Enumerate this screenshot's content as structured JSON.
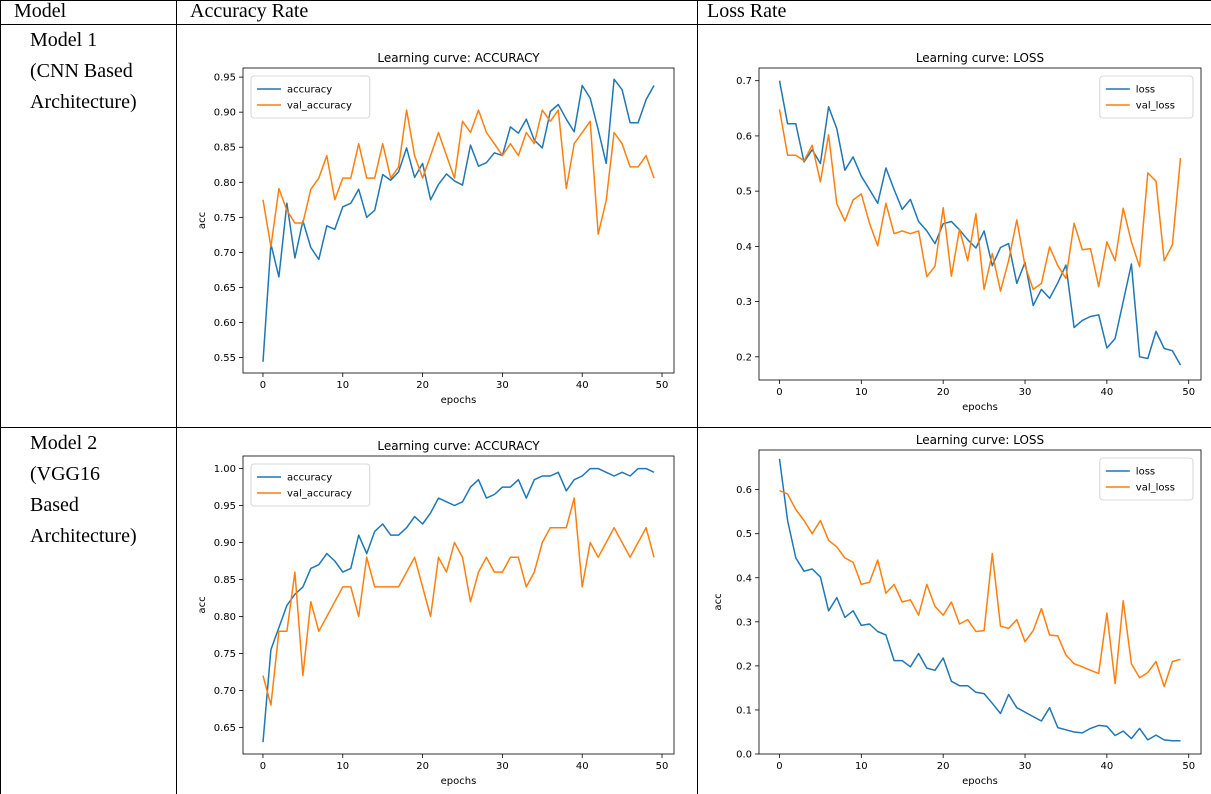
{
  "table": {
    "headers": [
      "Model",
      "Accuracy Rate",
      "Loss Rate"
    ],
    "rows": [
      {
        "model_lines": [
          "Model 1",
          "(CNN Based",
          "Architecture)"
        ]
      },
      {
        "model_lines": [
          "Model 2",
          "(VGG16",
          "Based",
          "Architecture)"
        ]
      }
    ]
  },
  "colors": {
    "train": "#1f77b4",
    "val": "#ff7f0e"
  },
  "chart_data": [
    {
      "type": "line",
      "title": "Learning curve: ACCURACY",
      "xlabel": "epochs",
      "ylabel": "acc",
      "xlim": [
        -2.5,
        51.5
      ],
      "ylim": [
        0.528,
        0.963
      ],
      "xticks": [
        0,
        10,
        20,
        30,
        40,
        50
      ],
      "yticks": [
        0.55,
        0.6,
        0.65,
        0.7,
        0.75,
        0.8,
        0.85,
        0.9,
        0.95
      ],
      "ytick_labels": [
        "0.55",
        "0.60",
        "0.65",
        "0.70",
        "0.75",
        "0.80",
        "0.85",
        "0.90",
        "0.95"
      ],
      "legend_position": "top-left",
      "grid": false,
      "series": [
        {
          "name": "accuracy",
          "color": "#1f77b4",
          "values": [
            0.544,
            0.712,
            0.665,
            0.77,
            0.692,
            0.745,
            0.707,
            0.69,
            0.738,
            0.733,
            0.765,
            0.77,
            0.79,
            0.75,
            0.76,
            0.811,
            0.803,
            0.815,
            0.849,
            0.807,
            0.827,
            0.775,
            0.797,
            0.812,
            0.802,
            0.796,
            0.853,
            0.823,
            0.828,
            0.842,
            0.838,
            0.879,
            0.87,
            0.89,
            0.86,
            0.849,
            0.901,
            0.911,
            0.89,
            0.872,
            0.938,
            0.92,
            0.875,
            0.827,
            0.947,
            0.932,
            0.885,
            0.885,
            0.918,
            0.938
          ]
        },
        {
          "name": "val_accuracy",
          "color": "#ff7f0e",
          "values": [
            0.775,
            0.708,
            0.791,
            0.76,
            0.742,
            0.742,
            0.79,
            0.806,
            0.838,
            0.775,
            0.806,
            0.806,
            0.855,
            0.806,
            0.806,
            0.855,
            0.806,
            0.822,
            0.903,
            0.838,
            0.806,
            0.838,
            0.871,
            0.838,
            0.806,
            0.887,
            0.871,
            0.903,
            0.871,
            0.855,
            0.838,
            0.855,
            0.838,
            0.871,
            0.855,
            0.903,
            0.887,
            0.903,
            0.791,
            0.855,
            0.871,
            0.887,
            0.726,
            0.774,
            0.871,
            0.855,
            0.822,
            0.822,
            0.838,
            0.806
          ]
        }
      ]
    },
    {
      "type": "line",
      "title": "Learning curve: LOSS",
      "xlabel": "epochs",
      "ylabel": "",
      "xlim": [
        -2.5,
        51.5
      ],
      "ylim": [
        0.158,
        0.723
      ],
      "xticks": [
        0,
        10,
        20,
        30,
        40,
        50
      ],
      "yticks": [
        0.2,
        0.3,
        0.4,
        0.5,
        0.6,
        0.7
      ],
      "ytick_labels": [
        "0.2",
        "0.3",
        "0.4",
        "0.5",
        "0.6",
        "0.7"
      ],
      "legend_position": "top-right",
      "grid": false,
      "series": [
        {
          "name": "loss",
          "color": "#1f77b4",
          "values": [
            0.7,
            0.622,
            0.622,
            0.553,
            0.575,
            0.55,
            0.653,
            0.613,
            0.538,
            0.562,
            0.527,
            0.503,
            0.478,
            0.542,
            0.503,
            0.467,
            0.485,
            0.445,
            0.428,
            0.405,
            0.441,
            0.445,
            0.43,
            0.412,
            0.397,
            0.428,
            0.365,
            0.398,
            0.405,
            0.333,
            0.371,
            0.293,
            0.322,
            0.306,
            0.334,
            0.366,
            0.253,
            0.266,
            0.273,
            0.276,
            0.216,
            0.233,
            0.3,
            0.368,
            0.2,
            0.197,
            0.246,
            0.215,
            0.211,
            0.185
          ]
        },
        {
          "name": "val_loss",
          "color": "#ff7f0e",
          "values": [
            0.648,
            0.565,
            0.565,
            0.555,
            0.583,
            0.517,
            0.602,
            0.477,
            0.446,
            0.484,
            0.495,
            0.442,
            0.401,
            0.478,
            0.423,
            0.428,
            0.423,
            0.428,
            0.345,
            0.364,
            0.47,
            0.346,
            0.431,
            0.374,
            0.459,
            0.322,
            0.387,
            0.319,
            0.374,
            0.448,
            0.365,
            0.322,
            0.333,
            0.399,
            0.365,
            0.342,
            0.442,
            0.394,
            0.396,
            0.327,
            0.408,
            0.374,
            0.469,
            0.408,
            0.363,
            0.533,
            0.518,
            0.374,
            0.403,
            0.56
          ]
        }
      ]
    },
    {
      "type": "line",
      "title": "Learning curve: ACCURACY",
      "xlabel": "epochs",
      "ylabel": "acc",
      "xlim": [
        -2.5,
        51.5
      ],
      "ylim": [
        0.614,
        1.017
      ],
      "xticks": [
        0,
        10,
        20,
        30,
        40,
        50
      ],
      "yticks": [
        0.65,
        0.7,
        0.75,
        0.8,
        0.85,
        0.9,
        0.95,
        1.0
      ],
      "ytick_labels": [
        "0.65",
        "0.70",
        "0.75",
        "0.80",
        "0.85",
        "0.90",
        "0.95",
        "1.00"
      ],
      "legend_position": "top-left",
      "grid": false,
      "series": [
        {
          "name": "accuracy",
          "color": "#1f77b4",
          "values": [
            0.63,
            0.755,
            0.785,
            0.815,
            0.83,
            0.84,
            0.865,
            0.87,
            0.885,
            0.875,
            0.86,
            0.865,
            0.91,
            0.885,
            0.915,
            0.925,
            0.91,
            0.91,
            0.92,
            0.935,
            0.925,
            0.94,
            0.96,
            0.955,
            0.95,
            0.955,
            0.975,
            0.985,
            0.96,
            0.965,
            0.975,
            0.975,
            0.985,
            0.96,
            0.985,
            0.99,
            0.99,
            0.995,
            0.97,
            0.985,
            0.99,
            1.0,
            1.0,
            0.995,
            0.99,
            0.995,
            0.99,
            1.0,
            1.0,
            0.995
          ]
        },
        {
          "name": "val_accuracy",
          "color": "#ff7f0e",
          "values": [
            0.72,
            0.68,
            0.78,
            0.78,
            0.86,
            0.72,
            0.82,
            0.78,
            0.8,
            0.82,
            0.84,
            0.84,
            0.8,
            0.88,
            0.84,
            0.84,
            0.84,
            0.84,
            0.86,
            0.88,
            0.84,
            0.8,
            0.88,
            0.86,
            0.9,
            0.88,
            0.82,
            0.86,
            0.88,
            0.86,
            0.86,
            0.88,
            0.88,
            0.84,
            0.86,
            0.9,
            0.92,
            0.92,
            0.92,
            0.96,
            0.84,
            0.9,
            0.88,
            0.9,
            0.92,
            0.9,
            0.88,
            0.9,
            0.92,
            0.88
          ]
        }
      ]
    },
    {
      "type": "line",
      "title": "Learning curve: LOSS",
      "xlabel": "epochs",
      "ylabel": "acc",
      "xlim": [
        -2.5,
        51.5
      ],
      "ylim": [
        0.0,
        0.69
      ],
      "xticks": [
        0,
        10,
        20,
        30,
        40,
        50
      ],
      "yticks": [
        0.0,
        0.1,
        0.2,
        0.3,
        0.4,
        0.5,
        0.6
      ],
      "ytick_labels": [
        "0.0",
        "0.1",
        "0.2",
        "0.3",
        "0.4",
        "0.5",
        "0.6"
      ],
      "legend_position": "top-right",
      "grid": false,
      "series": [
        {
          "name": "loss",
          "color": "#1f77b4",
          "values": [
            0.67,
            0.53,
            0.445,
            0.415,
            0.42,
            0.402,
            0.325,
            0.355,
            0.31,
            0.325,
            0.292,
            0.295,
            0.278,
            0.27,
            0.212,
            0.212,
            0.198,
            0.228,
            0.195,
            0.19,
            0.218,
            0.165,
            0.155,
            0.155,
            0.14,
            0.137,
            0.115,
            0.092,
            0.135,
            0.105,
            0.095,
            0.085,
            0.075,
            0.105,
            0.06,
            0.055,
            0.05,
            0.048,
            0.058,
            0.065,
            0.063,
            0.042,
            0.052,
            0.035,
            0.058,
            0.032,
            0.043,
            0.032,
            0.03,
            0.03
          ]
        },
        {
          "name": "val_loss",
          "color": "#ff7f0e",
          "values": [
            0.598,
            0.59,
            0.555,
            0.53,
            0.5,
            0.53,
            0.485,
            0.47,
            0.445,
            0.435,
            0.385,
            0.39,
            0.44,
            0.365,
            0.385,
            0.345,
            0.35,
            0.315,
            0.385,
            0.335,
            0.315,
            0.345,
            0.295,
            0.305,
            0.278,
            0.28,
            0.455,
            0.29,
            0.285,
            0.305,
            0.255,
            0.28,
            0.33,
            0.27,
            0.268,
            0.225,
            0.205,
            0.198,
            0.19,
            0.183,
            0.32,
            0.16,
            0.348,
            0.205,
            0.173,
            0.185,
            0.21,
            0.153,
            0.21,
            0.215
          ]
        }
      ]
    }
  ]
}
